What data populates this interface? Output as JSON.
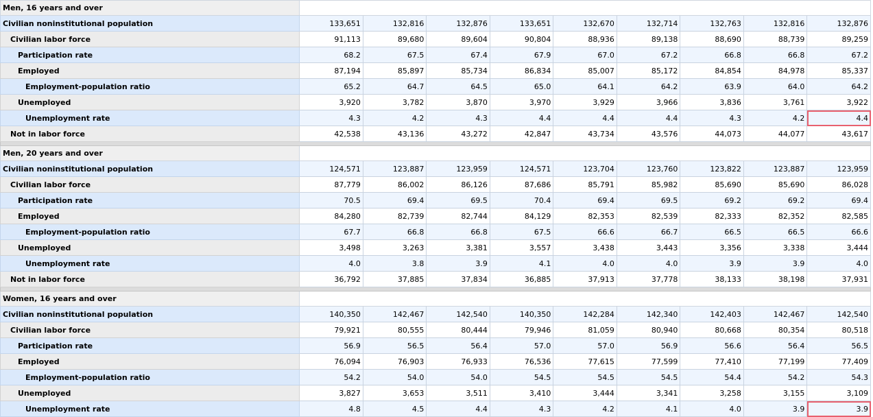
{
  "sections": [
    {
      "title": "Men, 16 years and over",
      "rows": [
        {
          "label": "Civilian noninstitutional population",
          "level": 0,
          "highlight": true,
          "values": [
            "133,651",
            "132,816",
            "132,876",
            "133,651",
            "132,670",
            "132,714",
            "132,763",
            "132,816",
            "132,876"
          ]
        },
        {
          "label": "Civilian labor force",
          "level": 1,
          "highlight": false,
          "values": [
            "91,113",
            "89,680",
            "89,604",
            "90,804",
            "88,936",
            "89,138",
            "88,690",
            "88,739",
            "89,259"
          ]
        },
        {
          "label": "Participation rate",
          "level": 2,
          "highlight": true,
          "values": [
            "68.2",
            "67.5",
            "67.4",
            "67.9",
            "67.0",
            "67.2",
            "66.8",
            "66.8",
            "67.2"
          ]
        },
        {
          "label": "Employed",
          "level": 2,
          "highlight": false,
          "values": [
            "87,194",
            "85,897",
            "85,734",
            "86,834",
            "85,007",
            "85,172",
            "84,854",
            "84,978",
            "85,337"
          ]
        },
        {
          "label": "Employment-population ratio",
          "level": 3,
          "highlight": true,
          "values": [
            "65.2",
            "64.7",
            "64.5",
            "65.0",
            "64.1",
            "64.2",
            "63.9",
            "64.0",
            "64.2"
          ]
        },
        {
          "label": "Unemployed",
          "level": 2,
          "highlight": false,
          "values": [
            "3,920",
            "3,782",
            "3,870",
            "3,970",
            "3,929",
            "3,966",
            "3,836",
            "3,761",
            "3,922"
          ]
        },
        {
          "label": "Unemployment rate",
          "level": 3,
          "highlight": true,
          "values": [
            "4.3",
            "4.2",
            "4.3",
            "4.4",
            "4.4",
            "4.4",
            "4.3",
            "4.2",
            "4.4"
          ],
          "marked_col": 8
        },
        {
          "label": "Not in labor force",
          "level": 1,
          "highlight": false,
          "values": [
            "42,538",
            "43,136",
            "43,272",
            "42,847",
            "43,734",
            "43,576",
            "44,073",
            "44,077",
            "43,617"
          ]
        }
      ]
    },
    {
      "title": "Men, 20 years and over",
      "rows": [
        {
          "label": "Civilian noninstitutional population",
          "level": 0,
          "highlight": true,
          "values": [
            "124,571",
            "123,887",
            "123,959",
            "124,571",
            "123,704",
            "123,760",
            "123,822",
            "123,887",
            "123,959"
          ]
        },
        {
          "label": "Civilian labor force",
          "level": 1,
          "highlight": false,
          "values": [
            "87,779",
            "86,002",
            "86,126",
            "87,686",
            "85,791",
            "85,982",
            "85,690",
            "85,690",
            "86,028"
          ]
        },
        {
          "label": "Participation rate",
          "level": 2,
          "highlight": true,
          "values": [
            "70.5",
            "69.4",
            "69.5",
            "70.4",
            "69.4",
            "69.5",
            "69.2",
            "69.2",
            "69.4"
          ]
        },
        {
          "label": "Employed",
          "level": 2,
          "highlight": false,
          "values": [
            "84,280",
            "82,739",
            "82,744",
            "84,129",
            "82,353",
            "82,539",
            "82,333",
            "82,352",
            "82,585"
          ]
        },
        {
          "label": "Employment-population ratio",
          "level": 3,
          "highlight": true,
          "values": [
            "67.7",
            "66.8",
            "66.8",
            "67.5",
            "66.6",
            "66.7",
            "66.5",
            "66.5",
            "66.6"
          ]
        },
        {
          "label": "Unemployed",
          "level": 2,
          "highlight": false,
          "values": [
            "3,498",
            "3,263",
            "3,381",
            "3,557",
            "3,438",
            "3,443",
            "3,356",
            "3,338",
            "3,444"
          ]
        },
        {
          "label": "Unemployment rate",
          "level": 3,
          "highlight": true,
          "values": [
            "4.0",
            "3.8",
            "3.9",
            "4.1",
            "4.0",
            "4.0",
            "3.9",
            "3.9",
            "4.0"
          ]
        },
        {
          "label": "Not in labor force",
          "level": 1,
          "highlight": false,
          "values": [
            "36,792",
            "37,885",
            "37,834",
            "36,885",
            "37,913",
            "37,778",
            "38,133",
            "38,198",
            "37,931"
          ]
        }
      ]
    },
    {
      "title": "Women, 16 years and over",
      "rows": [
        {
          "label": "Civilian noninstitutional population",
          "level": 0,
          "highlight": true,
          "values": [
            "140,350",
            "142,467",
            "142,540",
            "140,350",
            "142,284",
            "142,340",
            "142,403",
            "142,467",
            "142,540"
          ]
        },
        {
          "label": "Civilian labor force",
          "level": 1,
          "highlight": false,
          "values": [
            "79,921",
            "80,555",
            "80,444",
            "79,946",
            "81,059",
            "80,940",
            "80,668",
            "80,354",
            "80,518"
          ]
        },
        {
          "label": "Participation rate",
          "level": 2,
          "highlight": true,
          "values": [
            "56.9",
            "56.5",
            "56.4",
            "57.0",
            "57.0",
            "56.9",
            "56.6",
            "56.4",
            "56.5"
          ]
        },
        {
          "label": "Employed",
          "level": 2,
          "highlight": false,
          "values": [
            "76,094",
            "76,903",
            "76,933",
            "76,536",
            "77,615",
            "77,599",
            "77,410",
            "77,199",
            "77,409"
          ]
        },
        {
          "label": "Employment-population ratio",
          "level": 3,
          "highlight": true,
          "values": [
            "54.2",
            "54.0",
            "54.0",
            "54.5",
            "54.5",
            "54.5",
            "54.4",
            "54.2",
            "54.3"
          ]
        },
        {
          "label": "Unemployed",
          "level": 2,
          "highlight": false,
          "values": [
            "3,827",
            "3,653",
            "3,511",
            "3,410",
            "3,444",
            "3,341",
            "3,258",
            "3,155",
            "3,109"
          ]
        },
        {
          "label": "Unemployment rate",
          "level": 3,
          "highlight": true,
          "values": [
            "4.8",
            "4.5",
            "4.4",
            "4.3",
            "4.2",
            "4.1",
            "4.0",
            "3.9",
            "3.9"
          ],
          "marked_col": 8
        }
      ]
    }
  ]
}
